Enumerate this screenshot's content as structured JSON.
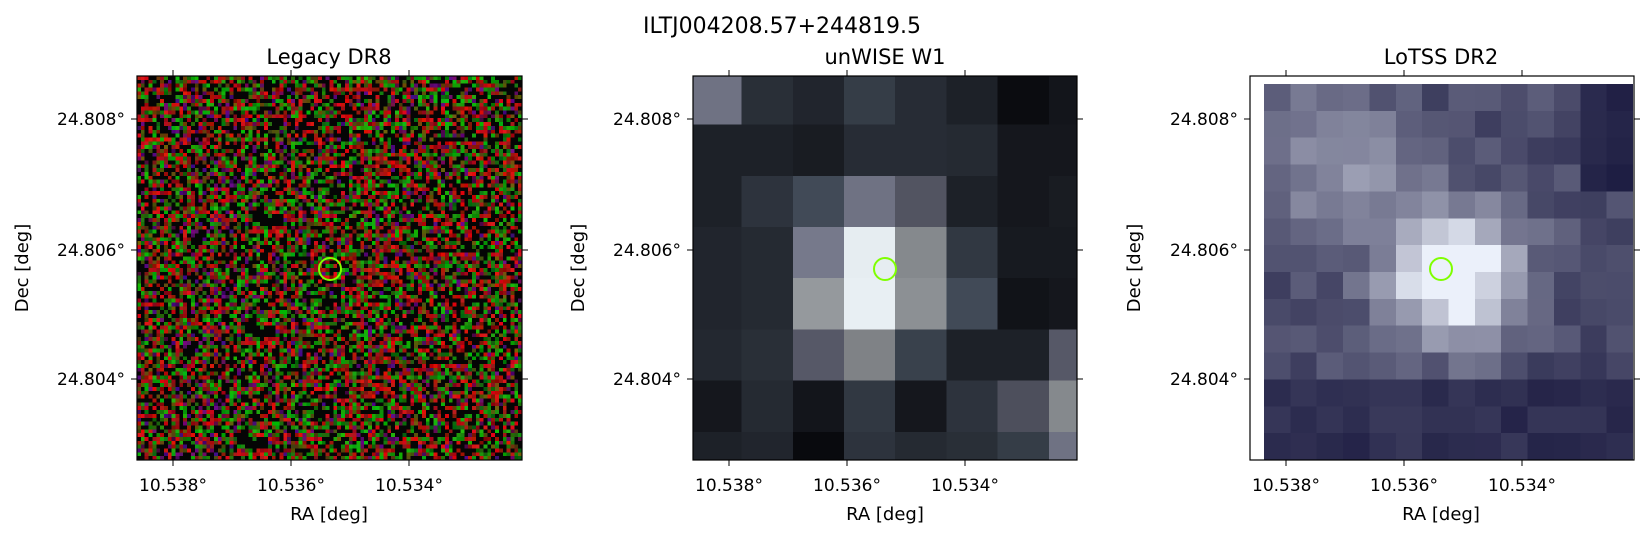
{
  "figure_title": "ILTJ004208.57+244819.5",
  "panels": [
    {
      "title": "Legacy DR8",
      "xlabel": "RA [deg]",
      "ylabel": "Dec [deg]",
      "xticks": [
        "10.538°",
        "10.536°",
        "10.534°"
      ],
      "yticks": [
        "24.808°",
        "24.806°",
        "24.804°"
      ],
      "image": "rgb-noise-optical",
      "marker": "circle"
    },
    {
      "title": "unWISE W1",
      "xlabel": "RA [deg]",
      "ylabel": "Dec [deg]",
      "xticks": [
        "10.538°",
        "10.536°",
        "10.534°"
      ],
      "yticks": [
        "24.808°",
        "24.806°",
        "24.804°"
      ],
      "image": "grayscale-infrared",
      "marker": "circle"
    },
    {
      "title": "LoTSS DR2",
      "xlabel": "RA [deg]",
      "ylabel": "Dec [deg]",
      "xticks": [
        "10.538°",
        "10.536°",
        "10.534°"
      ],
      "yticks": [
        "24.808°",
        "24.806°",
        "24.804°"
      ],
      "image": "grayscale-radio",
      "marker": "circle"
    }
  ],
  "colors": {
    "marker": "#7fff00",
    "axes": "#000000",
    "pixel_dark": "#0a0a12",
    "pixel_mid": "#4a4a6a",
    "pixel_light": "#e8f2f2"
  }
}
